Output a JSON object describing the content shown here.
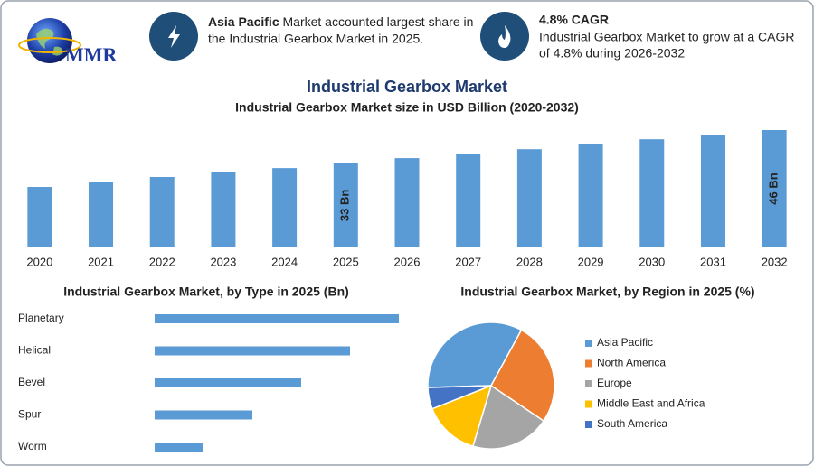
{
  "header": {
    "logo": "MMR",
    "highlights": [
      {
        "bold": "Asia Pacific",
        "lines": [
          "Market accounted largest share in",
          "the Industrial Gearbox Market in 2025."
        ]
      },
      {
        "bold": "4.8% CAGR",
        "lines": [
          "Industrial Gearbox Market to grow at a CAGR",
          "of 4.8% during 2026-2032"
        ]
      }
    ]
  },
  "title": "Industrial Gearbox Market",
  "chart_data": [
    {
      "type": "bar",
      "orientation": "vertical",
      "title": "Industrial Gearbox Market size in USD Billion (2020-2032)",
      "categories": [
        "2020",
        "2021",
        "2022",
        "2023",
        "2024",
        "2025",
        "2026",
        "2027",
        "2028",
        "2029",
        "2030",
        "2031",
        "2032"
      ],
      "values": [
        23.7,
        25.5,
        27.6,
        29.4,
        31.1,
        33,
        35,
        36.8,
        38.5,
        40.7,
        42.4,
        44.2,
        46
      ],
      "value_labels": [
        null,
        null,
        null,
        null,
        null,
        "33 Bn",
        null,
        null,
        null,
        null,
        null,
        null,
        "46 Bn"
      ],
      "color": "#5b9bd5"
    },
    {
      "type": "bar",
      "orientation": "horizontal",
      "title": "Industrial Gearbox Market, by Type in 2025 (Bn)",
      "categories": [
        "Planetary",
        "Helical",
        "Bevel",
        "Spur",
        "Worm"
      ],
      "values": [
        11,
        8.8,
        6.6,
        4.4,
        2.2
      ],
      "color": "#5b9bd5"
    },
    {
      "type": "pie",
      "title": "Industrial Gearbox Market, by Region in 2025 (%)",
      "categories": [
        "Asia Pacific",
        "North America",
        "Europe",
        "Middle East and Africa",
        "South America"
      ],
      "values": [
        33.4,
        26.5,
        20.2,
        14.4,
        5.5
      ],
      "colors": [
        "#5b9bd5",
        "#ed7d31",
        "#a5a5a5",
        "#ffc000",
        "#4472c4"
      ]
    }
  ]
}
